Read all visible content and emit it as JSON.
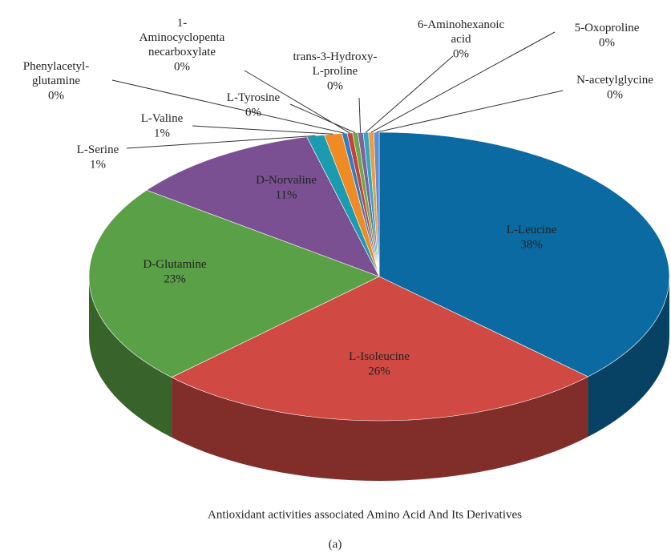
{
  "chart_data": {
    "type": "pie3d",
    "title": "Antioxidant activities associated Amino Acid And Its Derivatives",
    "panel_label": "(a)",
    "categories": [
      "L-Leucine",
      "L-Isoleucine",
      "D-Glutamine",
      "D-Norvaline",
      "L-Serine",
      "L-Valine",
      "Phenylacetyl-\nglutamine",
      "1-\nAminocyclopenta\nnecarboxylate",
      "L-Tyrosine",
      "trans-3-Hydroxy-\nL-proline",
      "6-Aminohexanoic\nacid",
      "5-Oxoproline",
      "N-acetylglycine"
    ],
    "values": [
      38,
      26,
      23,
      11,
      1,
      1,
      0.3,
      0.3,
      0.3,
      0.3,
      0.3,
      0.3,
      0.3
    ],
    "value_labels": [
      "38%",
      "26%",
      "23%",
      "11%",
      "1%",
      "1%",
      "0%",
      "0%",
      "0%",
      "0%",
      "0%",
      "0%",
      "0%"
    ],
    "colors": [
      "#0b6aa2",
      "#d04a43",
      "#5aa046",
      "#7a5092",
      "#1a9bb0",
      "#f08a24",
      "#2f7fc0",
      "#c8403a",
      "#6aaa48",
      "#8060a0",
      "#30a8c0",
      "#f09a40",
      "#5b8fd0"
    ]
  }
}
